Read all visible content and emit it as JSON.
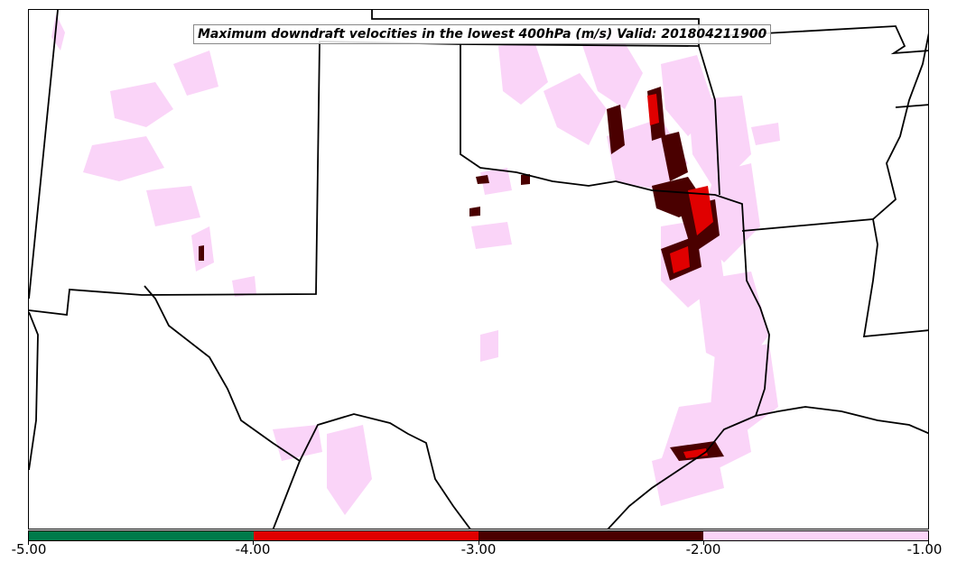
{
  "title": "Maximum downdraft velocities in the lowest 400hPa (m/s) Valid: 201804211900",
  "colorbar": {
    "ticks": [
      "-5.00",
      "-4.00",
      "-3.00",
      "-2.00",
      "-1.00"
    ],
    "colors": [
      "#007a4a",
      "#e00000",
      "#4a0000",
      "#fad4f8"
    ]
  },
  "map": {
    "boundary_color": "#000000",
    "weak_color": "#fad4f8",
    "mid_color": "#4a0000",
    "strong_color": "#e00000"
  }
}
